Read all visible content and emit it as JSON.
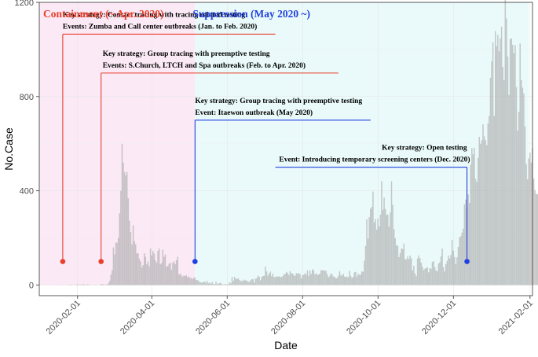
{
  "chart_data": {
    "type": "bar",
    "xlabel": "Date",
    "ylabel": "No.Case",
    "xlim": [
      "2020-01-01",
      "2021-02-03"
    ],
    "ylim": [
      -45,
      1200
    ],
    "x_ticks": [
      "2020-02-01",
      "2020-04-01",
      "2020-06-01",
      "2020-08-01",
      "2020-10-01",
      "2020-12-01",
      "2021-02-01"
    ],
    "y_ticks": [
      0,
      400,
      800,
      1200
    ],
    "grid": true,
    "bar_color": "#b3b3b3",
    "phases": [
      {
        "label": "Containment (~ Apr. 2020)",
        "color": "#e8402a",
        "start": "2020-01-01",
        "end": "2020-05-06",
        "fill": "#fbe9f6"
      },
      {
        "label": "Suppression (May 2020 ~)",
        "color": "#1f3fe0",
        "start": "2020-05-06",
        "end": "2021-01-31",
        "fill": "#eafafa"
      }
    ],
    "annotations": [
      {
        "date": "2020-01-20",
        "marker_y": 100,
        "line_y": 1065,
        "label_until": "2020-07-10",
        "color": "#e8402a",
        "align": "start",
        "strategy": "Key strategy: Contact tracing with tracing related testing",
        "events": "Events: Zumba and Call center outbreaks (Jan. to Feb. 2020)"
      },
      {
        "date": "2020-02-20",
        "marker_y": 100,
        "line_y": 900,
        "label_until": "2020-08-30",
        "color": "#e8402a",
        "align": "start",
        "strategy": "Key strategy: Group tracing with preemptive testing",
        "events": "Events: S.Church, LTCH and Spa outbreaks (Feb. to Apr. 2020)"
      },
      {
        "date": "2020-05-06",
        "marker_y": 100,
        "line_y": 700,
        "label_until": "2020-09-25",
        "color": "#1f3fe0",
        "align": "start",
        "strategy": "Key strategy: Group tracing with preemptive testing",
        "events": "Event: Itaewon outbreak (May 2020)"
      },
      {
        "date": "2020-12-12",
        "marker_y": 100,
        "line_y": 500,
        "label_until": "2020-07-10",
        "color": "#1f3fe0",
        "align": "end",
        "strategy": "Key strategy: Open testing",
        "events": "Event: Introducing temporary screening centers (Dec. 2020)"
      }
    ],
    "series": [
      {
        "start_date": "2020-01-20",
        "daily_values": [
          1,
          0,
          0,
          0,
          1,
          0,
          1,
          2,
          0,
          1,
          1,
          1,
          4,
          1,
          1,
          3,
          1,
          4,
          2,
          0,
          3,
          2,
          0,
          1,
          0,
          0,
          1,
          1,
          0,
          0,
          2,
          2,
          5,
          1,
          1,
          2,
          2,
          8,
          18,
          44,
          63,
          160,
          130,
          180,
          180,
          200,
          305,
          400,
          600,
          520,
          480,
          465,
          480,
          369,
          273,
          225,
          173,
          253,
          186,
          173,
          134,
          135,
          112,
          100,
          75,
          85,
          135,
          120,
          88,
          100,
          80,
          155,
          125,
          145,
          134,
          105,
          95,
          145,
          155,
          88,
          94,
          150,
          120,
          130,
          78,
          81,
          90,
          95,
          65,
          94,
          101,
          89,
          105,
          120,
          45,
          49,
          41,
          36,
          40,
          38,
          42,
          33,
          36,
          30,
          30,
          25,
          31,
          32,
          22,
          21,
          18,
          12,
          11,
          10,
          13,
          15,
          9,
          17,
          8,
          10,
          6,
          13,
          4,
          5,
          14,
          5,
          6,
          9,
          8,
          3,
          2,
          3,
          4,
          2,
          4,
          12,
          8,
          34,
          18,
          35,
          27,
          26,
          29,
          22,
          16,
          20,
          16,
          23,
          20,
          19,
          15,
          13,
          21,
          25,
          25,
          10,
          27,
          29,
          40,
          35,
          20,
          35,
          39,
          39,
          79,
          58,
          40,
          49,
          57,
          38,
          49,
          34,
          34,
          37,
          35,
          38,
          33,
          35,
          38,
          45,
          48,
          56,
          51,
          43,
          59,
          50,
          49,
          42,
          39,
          51,
          48,
          51,
          46,
          28,
          42,
          43,
          51,
          44,
          62,
          39,
          61,
          47,
          67,
          63,
          46,
          50,
          43,
          45,
          49,
          63,
          63,
          62,
          61,
          61,
          47,
          33,
          39,
          50,
          45,
          36,
          35,
          28,
          30,
          39,
          59,
          43,
          40,
          48,
          36,
          34,
          36,
          33,
          60,
          39,
          30,
          35,
          54,
          56,
          36,
          48,
          43,
          45,
          58,
          56,
          103,
          166,
          279,
          197,
          288,
          324,
          332,
          397,
          266,
          280,
          235,
          283,
          248,
          299,
          441,
          320,
          371,
          323,
          298,
          299,
          248,
          308,
          441,
          340,
          238,
          198,
          168,
          167,
          119,
          136,
          156,
          153,
          176,
          110,
          109,
          121,
          110,
          125,
          114,
          61,
          82,
          50,
          38,
          113,
          126,
          114,
          95,
          77,
          64,
          69,
          73,
          75,
          54,
          72,
          69,
          98,
          102,
          77,
          62,
          58,
          91,
          97,
          121,
          155,
          76,
          58,
          89,
          103,
          125,
          113,
          128,
          191,
          146,
          119,
          89,
          118,
          162,
          202,
          208,
          223,
          239,
          343,
          363,
          330,
          385,
          349,
          511,
          581,
          555,
          583,
          451,
          438,
          540,
          629,
          600,
          615,
          682,
          631,
          615,
          594,
          686,
          718,
          880,
          950,
          1030,
          718,
          1078,
          1014,
          1062,
          992,
          1047,
          1097,
          926,
          869,
          1237,
          1132,
          970,
          807,
          1045,
          1046,
          1020,
          985,
          1018,
          840,
          655,
          735,
          1025,
          870,
          838,
          813,
          674,
          513,
          449,
          537,
          562,
          520,
          580,
          451,
          404,
          389,
          385,
          412,
          524,
          458,
          451,
          469,
          387,
          465,
          479,
          420,
          445,
          320
        ]
      }
    ]
  }
}
